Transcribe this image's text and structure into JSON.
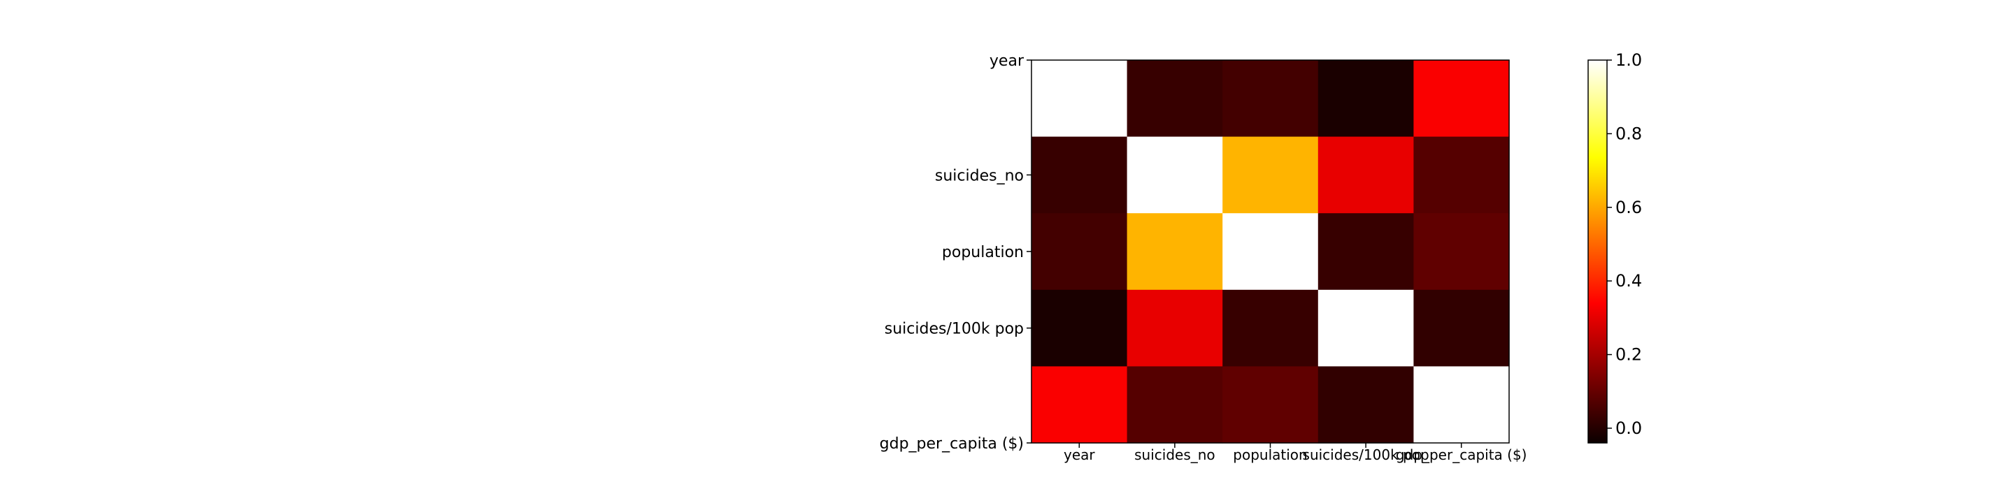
{
  "chart_data": {
    "type": "heatmap",
    "title": "",
    "xlabel": "",
    "ylabel": "",
    "rows": [
      "year",
      "suicides_no",
      "population",
      "suicides/100k pop",
      "gdp_per_capita ($)"
    ],
    "columns": [
      "year",
      "suicides_no",
      "population",
      "suicides/100k pop",
      "gdp_per_capita ($)"
    ],
    "values": [
      [
        1.0,
        0.01,
        0.03,
        -0.04,
        0.34
      ],
      [
        0.01,
        1.0,
        0.62,
        0.31,
        0.06
      ],
      [
        0.03,
        0.62,
        1.0,
        0.01,
        0.08
      ],
      [
        -0.04,
        0.31,
        0.01,
        1.0,
        0.0
      ],
      [
        0.34,
        0.06,
        0.08,
        0.0,
        1.0
      ]
    ],
    "colormap": "hot",
    "vmin": -0.04,
    "vmax": 1.0,
    "colorbar": {
      "ticks": [
        0.0,
        0.2,
        0.4,
        0.6,
        0.8,
        1.0
      ],
      "tick_labels": [
        "0.0",
        "0.2",
        "0.4",
        "0.6",
        "0.8",
        "1.0"
      ]
    },
    "grid": false
  }
}
